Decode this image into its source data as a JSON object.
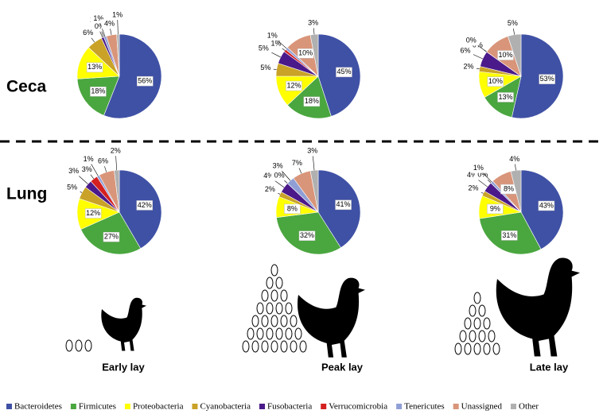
{
  "chart_data": [
    {
      "type": "pie",
      "values": [
        56,
        18,
        13,
        6,
        1,
        0,
        1,
        4,
        1
      ],
      "value_labels": [
        "56%",
        "18%",
        "13%",
        "6%",
        "1%",
        "0%",
        "1%",
        "4%",
        "1%"
      ]
    },
    {
      "type": "pie",
      "values": [
        45,
        18,
        12,
        5,
        5,
        1,
        1,
        10,
        3
      ],
      "value_labels": [
        "45%",
        "18%",
        "12%",
        "5%",
        "5%",
        "1%",
        "1%",
        "10%",
        "3%"
      ]
    },
    {
      "type": "pie",
      "values": [
        53,
        13,
        10,
        2,
        6,
        0,
        0,
        10,
        5
      ],
      "value_labels": [
        "53%",
        "13%",
        "10%",
        "2%",
        "6%",
        "0%",
        "0%",
        "10%",
        "5%"
      ]
    },
    {
      "type": "pie",
      "values": [
        42,
        27,
        12,
        5,
        3,
        3,
        1,
        6,
        2
      ],
      "value_labels": [
        "42%",
        "27%",
        "12%",
        "5%",
        "3%",
        "3%",
        "1%",
        "6%",
        "2%"
      ]
    },
    {
      "type": "pie",
      "values": [
        41,
        32,
        8,
        2,
        4,
        0,
        3,
        7,
        3
      ],
      "value_labels": [
        "41%",
        "32%",
        "8%",
        "2%",
        "4%",
        "0%",
        "3%",
        "7%",
        "3%"
      ]
    },
    {
      "type": "pie",
      "values": [
        43,
        31,
        9,
        2,
        4,
        0,
        1,
        8,
        4
      ],
      "value_labels": [
        "43%",
        "31%",
        "9%",
        "2%",
        "4%",
        "0%",
        "1%",
        "8%",
        "4%"
      ]
    }
  ],
  "categories": [
    "Bacteroidetes",
    "Firmicutes",
    "Proteobacteria",
    "Cyanobacteria",
    "Fusobacteria",
    "Verrucomicrobia",
    "Tenericutes",
    "Unassigned",
    "Other"
  ],
  "colors": [
    "#3f51a5",
    "#4aa63f",
    "#ffff00",
    "#c9a227",
    "#4b1a8a",
    "#d42020",
    "#8f9fd6",
    "#d9957a",
    "#b0b0b0"
  ],
  "row_labels": [
    "Ceca",
    "Lung"
  ],
  "column_labels": [
    "Early lay",
    "Peak lay",
    "Late lay"
  ]
}
